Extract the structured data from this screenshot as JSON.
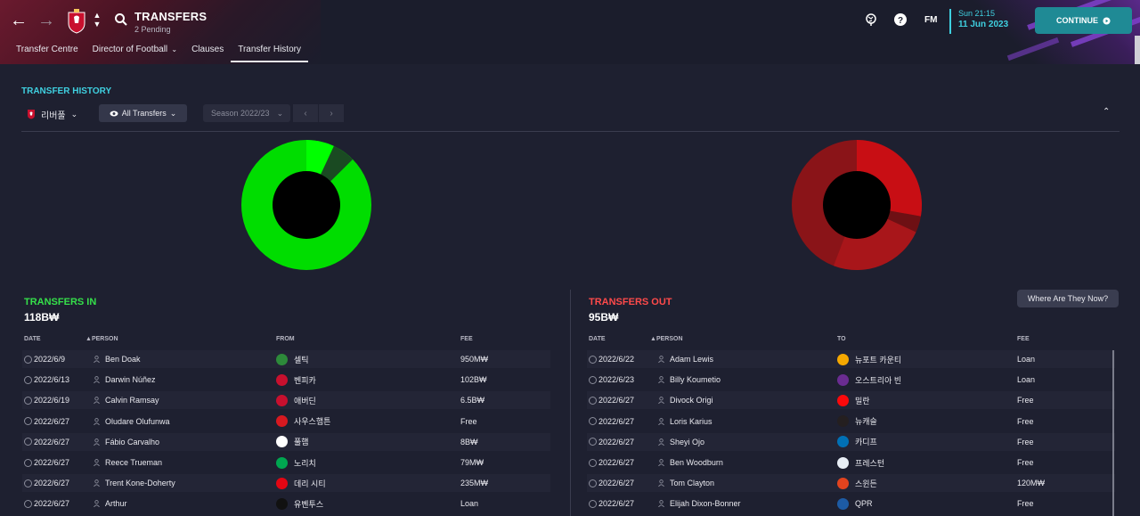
{
  "header": {
    "title": "TRANSFERS",
    "subtitle": "2 Pending",
    "fm_logo": "FM",
    "time": "Sun 21:15",
    "date": "11 Jun 2023",
    "continue_label": "CONTINUE",
    "tabs": [
      {
        "label": "Transfer Centre"
      },
      {
        "label": "Director of Football",
        "has_dropdown": true
      },
      {
        "label": "Clauses"
      },
      {
        "label": "Transfer History",
        "active": true
      }
    ]
  },
  "toolbar": {
    "section_title": "TRANSFER HISTORY",
    "club_name": "리버풀",
    "filter_label": "All Transfers",
    "season_label": "Season 2022/23"
  },
  "charts": {
    "in_color_main": "#00e000",
    "out_color_main": "#b20f14"
  },
  "transfers_in": {
    "title": "TRANSFERS IN",
    "total": "118B₩",
    "columns": {
      "date": "DATE",
      "person": "PERSON",
      "from": "FROM",
      "fee": "FEE"
    },
    "rows": [
      {
        "date": "2022/6/9",
        "person": "Ben Doak",
        "club": "셀틱",
        "fee": "950M₩",
        "badge_color": "#2d8a3a"
      },
      {
        "date": "2022/6/13",
        "person": "Darwin Núñez",
        "club": "벤피카",
        "fee": "102B₩",
        "badge_color": "#c8102e"
      },
      {
        "date": "2022/6/19",
        "person": "Calvin Ramsay",
        "club": "애버딘",
        "fee": "6.5B₩",
        "badge_color": "#c8102e"
      },
      {
        "date": "2022/6/27",
        "person": "Oludare Olufunwa",
        "club": "사우스햄튼",
        "fee": "Free",
        "badge_color": "#d71920"
      },
      {
        "date": "2022/6/27",
        "person": "Fábio Carvalho",
        "club": "풀햄",
        "fee": "8B₩",
        "badge_color": "#ffffff"
      },
      {
        "date": "2022/6/27",
        "person": "Reece Trueman",
        "club": "노리치",
        "fee": "79M₩",
        "badge_color": "#00a650"
      },
      {
        "date": "2022/6/27",
        "person": "Trent Kone-Doherty",
        "club": "데리 시티",
        "fee": "235M₩",
        "badge_color": "#e30613"
      },
      {
        "date": "2022/6/27",
        "person": "Arthur",
        "club": "유벤투스",
        "fee": "Loan",
        "badge_color": "#111111"
      }
    ]
  },
  "transfers_out": {
    "title": "TRANSFERS OUT",
    "total": "95B₩",
    "where_button": "Where Are They Now?",
    "columns": {
      "date": "DATE",
      "person": "PERSON",
      "to": "TO",
      "fee": "FEE"
    },
    "rows": [
      {
        "date": "2022/6/22",
        "person": "Adam Lewis",
        "club": "뉴포트 카운티",
        "fee": "Loan",
        "badge_color": "#f5a800"
      },
      {
        "date": "2022/6/23",
        "person": "Billy Koumetio",
        "club": "오스트리아 빈",
        "fee": "Loan",
        "badge_color": "#6a2c91"
      },
      {
        "date": "2022/6/27",
        "person": "Divock Origi",
        "club": "밀란",
        "fee": "Free",
        "badge_color": "#fb090b"
      },
      {
        "date": "2022/6/27",
        "person": "Loris Karius",
        "club": "뉴캐슬",
        "fee": "Free",
        "badge_color": "#241f20"
      },
      {
        "date": "2022/6/27",
        "person": "Sheyi Ojo",
        "club": "카디프",
        "fee": "Free",
        "badge_color": "#0070b5"
      },
      {
        "date": "2022/6/27",
        "person": "Ben Woodburn",
        "club": "프레스턴",
        "fee": "Free",
        "badge_color": "#e8eef5"
      },
      {
        "date": "2022/6/27",
        "person": "Tom Clayton",
        "club": "스윈든",
        "fee": "120M₩",
        "badge_color": "#e2431e"
      },
      {
        "date": "2022/6/27",
        "person": "Elijah Dixon-Bonner",
        "club": "QPR",
        "fee": "Free",
        "badge_color": "#1d5ba4"
      }
    ]
  }
}
